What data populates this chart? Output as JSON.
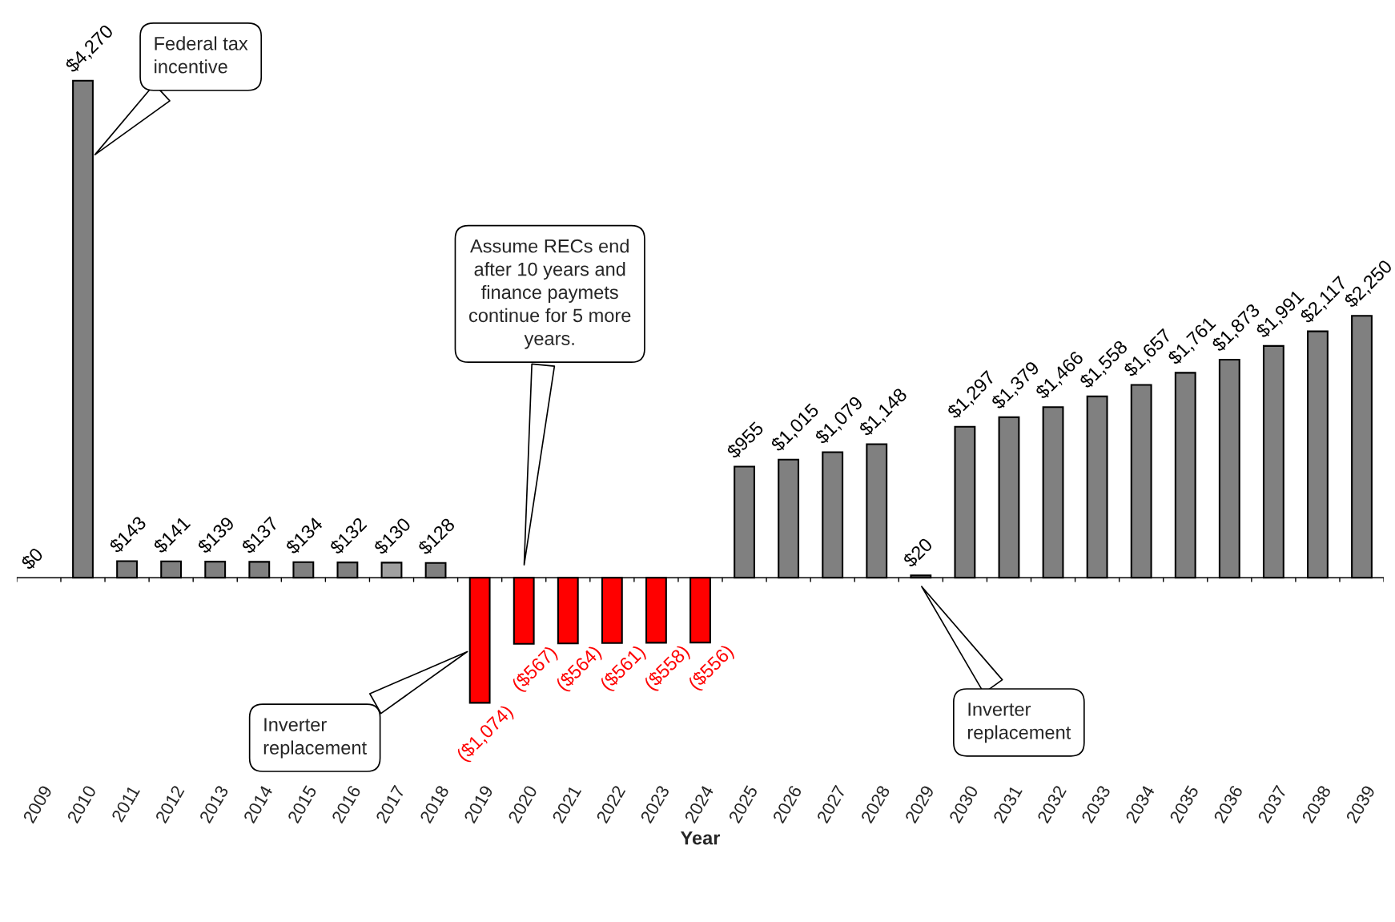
{
  "chart_data": {
    "type": "bar",
    "xlabel": "Year",
    "categories": [
      "2009",
      "2010",
      "2011",
      "2012",
      "2013",
      "2014",
      "2015",
      "2016",
      "2017",
      "2018",
      "2019",
      "2020",
      "2021",
      "2022",
      "2023",
      "2024",
      "2025",
      "2026",
      "2027",
      "2028",
      "2029",
      "2030",
      "2031",
      "2032",
      "2033",
      "2034",
      "2035",
      "2036",
      "2037",
      "2038",
      "2039"
    ],
    "values": [
      0,
      4270,
      143,
      141,
      139,
      137,
      134,
      132,
      130,
      128,
      -1074,
      -567,
      -564,
      -561,
      -558,
      -556,
      955,
      1015,
      1079,
      1148,
      20,
      1297,
      1379,
      1466,
      1558,
      1657,
      1761,
      1873,
      1991,
      2117,
      2250
    ],
    "value_labels": [
      "$0",
      "$4,270",
      "$143",
      "$141",
      "$139",
      "$137",
      "$134",
      "$132",
      "$130",
      "$128",
      "($1,074)",
      "($567)",
      "($564)",
      "($561)",
      "($558)",
      "($556)",
      "$955",
      "$1,015",
      "$1,079",
      "$1,148",
      "$20",
      "$1,297",
      "$1,379",
      "$1,466",
      "$1,558",
      "$1,657",
      "$1,761",
      "$1,873",
      "$1,991",
      "$2,117",
      "$2,250"
    ],
    "colors": [
      "#808080",
      "#808080",
      "#808080",
      "#808080",
      "#808080",
      "#808080",
      "#808080",
      "#808080",
      "#a0a0a0",
      "#808080",
      "#ff0000",
      "#ff0000",
      "#ff0000",
      "#ff0000",
      "#ff0000",
      "#ff0000",
      "#808080",
      "#808080",
      "#808080",
      "#808080",
      "#808080",
      "#808080",
      "#808080",
      "#808080",
      "#808080",
      "#808080",
      "#808080",
      "#808080",
      "#808080",
      "#808080",
      "#808080"
    ],
    "annotations": [
      "Federal tax\nincentive",
      "Inverter\nreplacement",
      "Assume RECs end\nafter 10 years and\nfinance paymets\ncontinue for 5 more\nyears.",
      "Inverter\nreplacement"
    ],
    "grid": false,
    "legend": false
  }
}
